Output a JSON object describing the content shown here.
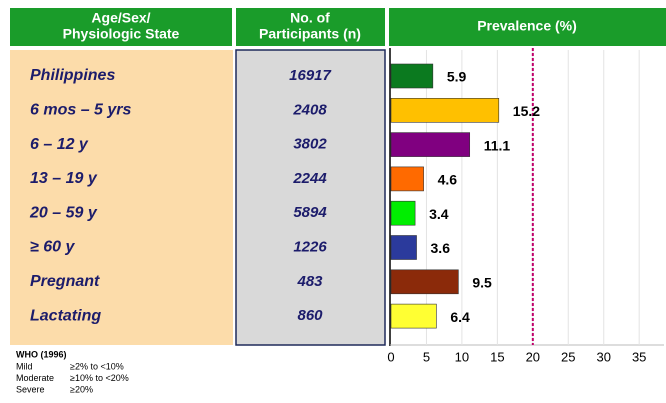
{
  "chart_data": {
    "type": "bar",
    "orientation": "horizontal",
    "headers": [
      [
        "Age/Sex/",
        "Physiologic State"
      ],
      [
        "No. of",
        "Participants (n)"
      ],
      [
        "Prevalence  (%)"
      ]
    ],
    "categories": [
      "Philippines",
      "6 mos – 5 yrs",
      "6 – 12 y",
      "13 – 19 y",
      "20 – 59 y",
      "≥ 60 y",
      "Pregnant",
      "Lactating"
    ],
    "participants": [
      16917,
      2408,
      3802,
      2244,
      5894,
      1226,
      483,
      860
    ],
    "values": [
      5.9,
      15.2,
      11.1,
      4.6,
      3.4,
      3.6,
      9.5,
      6.4
    ],
    "colors": [
      "#0b7a1f",
      "#ffc000",
      "#800080",
      "#ff6a00",
      "#00ee00",
      "#2b3a9c",
      "#8b2a0a",
      "#ffff33"
    ],
    "xlim": [
      0,
      38.5
    ],
    "xticks": [
      0,
      5,
      10,
      15,
      20,
      25,
      30,
      35
    ],
    "grid": true,
    "reference_line": {
      "value": 20,
      "color": "#c0006a"
    },
    "footnote": {
      "title": "WHO (1996)",
      "rows": [
        [
          "Mild",
          "≥2% to <10%"
        ],
        [
          "Moderate",
          "≥10% to <20%"
        ],
        [
          "Severe",
          "≥20%"
        ]
      ]
    }
  }
}
